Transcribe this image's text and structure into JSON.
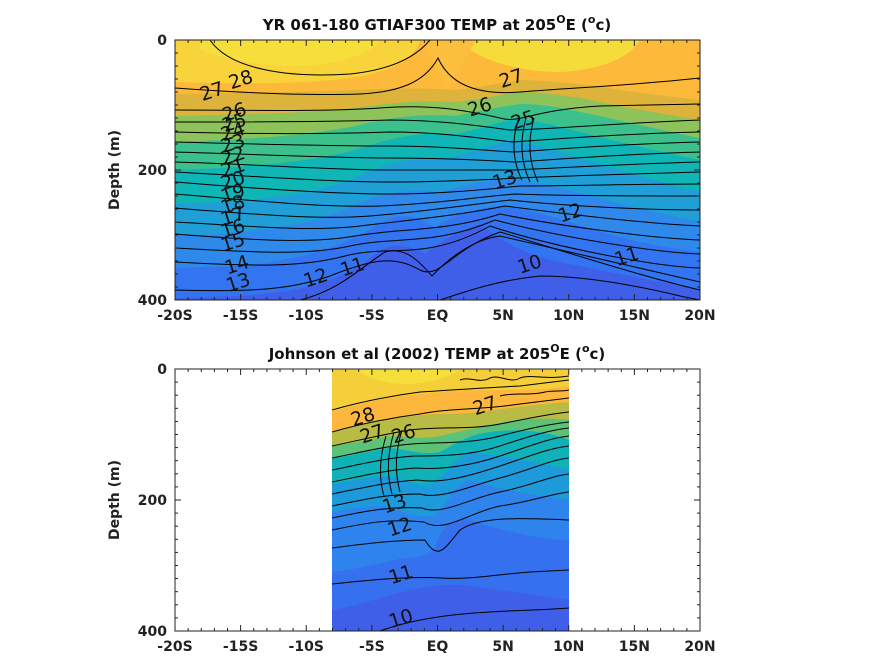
{
  "chart_data": [
    {
      "type": "contour",
      "title": "YR 061-180 GTIAF300 TEMP at 205",
      "title_sup": "O",
      "title_end": "E (",
      "title_sup2": "o",
      "title_tail": "c)",
      "ylabel": "Depth (m)",
      "xlim": [
        -20,
        20
      ],
      "ylim": [
        0,
        400
      ],
      "y_reversed": true,
      "x_ticks": [
        -20,
        -15,
        -10,
        -5,
        0,
        5,
        10,
        15,
        20
      ],
      "x_tick_labels": [
        "-20S",
        "-15S",
        "-10S",
        "-5S",
        "EQ",
        "5N",
        "10N",
        "15N",
        "20N"
      ],
      "y_ticks": [
        0,
        200,
        400
      ],
      "y_tick_labels": [
        "0",
        "200",
        "400"
      ],
      "data_extent_x": [
        -20,
        20
      ],
      "colormap": "parula",
      "contour_levels": [
        10,
        11,
        12,
        13,
        14,
        15,
        16,
        17,
        18,
        19,
        20,
        21,
        22,
        23,
        24,
        25,
        26,
        27,
        28
      ],
      "contour_labels": [
        {
          "text": "28",
          "x": -15,
          "y": 60
        },
        {
          "text": "27",
          "x": -17.2,
          "y": 78
        },
        {
          "text": "26",
          "x": -15.5,
          "y": 110
        },
        {
          "text": "25",
          "x": -15.5,
          "y": 126
        },
        {
          "text": "24",
          "x": -15.6,
          "y": 140
        },
        {
          "text": "23",
          "x": -15.6,
          "y": 158
        },
        {
          "text": "22",
          "x": -15.6,
          "y": 177
        },
        {
          "text": "21",
          "x": -15.6,
          "y": 196
        },
        {
          "text": "20",
          "x": -15.6,
          "y": 215
        },
        {
          "text": "19",
          "x": -15.6,
          "y": 235
        },
        {
          "text": "18",
          "x": -15.6,
          "y": 252
        },
        {
          "text": "17",
          "x": -15.6,
          "y": 270
        },
        {
          "text": "16",
          "x": -15.6,
          "y": 289
        },
        {
          "text": "15",
          "x": -15.6,
          "y": 310
        },
        {
          "text": "14",
          "x": -15.3,
          "y": 345
        },
        {
          "text": "13",
          "x": -15.2,
          "y": 372
        },
        {
          "text": "12",
          "x": -9.3,
          "y": 365
        },
        {
          "text": "11",
          "x": -6.5,
          "y": 348
        },
        {
          "text": "10",
          "x": 7,
          "y": 344
        },
        {
          "text": "27",
          "x": 5.6,
          "y": 58
        },
        {
          "text": "26",
          "x": 3.2,
          "y": 102
        },
        {
          "text": "25",
          "x": 6.5,
          "y": 122
        },
        {
          "text": "13",
          "x": 5.1,
          "y": 214
        },
        {
          "text": "12",
          "x": 10.1,
          "y": 265
        },
        {
          "text": "11",
          "x": 14.4,
          "y": 332
        }
      ]
    },
    {
      "type": "contour",
      "title": "Johnson et al (2002) TEMP at 205",
      "title_sup": "O",
      "title_end": "E (",
      "title_sup2": "o",
      "title_tail": "c)",
      "ylabel": "Depth (m)",
      "xlim": [
        -20,
        20
      ],
      "ylim": [
        0,
        400
      ],
      "y_reversed": true,
      "x_ticks": [
        -20,
        -15,
        -10,
        -5,
        0,
        5,
        10,
        15,
        20
      ],
      "x_tick_labels": [
        "-20S",
        "-15S",
        "-10S",
        "-5S",
        "EQ",
        "5N",
        "10N",
        "15N",
        "20N"
      ],
      "y_ticks": [
        0,
        200,
        400
      ],
      "y_tick_labels": [
        "0",
        "200",
        "400"
      ],
      "data_extent_x": [
        -8,
        10
      ],
      "colormap": "parula",
      "contour_levels": [
        10,
        11,
        12,
        13,
        14,
        15,
        16,
        17,
        18,
        19,
        20,
        21,
        22,
        23,
        24,
        25,
        26,
        27,
        28
      ],
      "contour_labels": [
        {
          "text": "28",
          "x": -5.7,
          "y": 72
        },
        {
          "text": "27",
          "x": -5,
          "y": 98
        },
        {
          "text": "26",
          "x": -2.6,
          "y": 98
        },
        {
          "text": "13",
          "x": -3.3,
          "y": 205
        },
        {
          "text": "12",
          "x": -2.9,
          "y": 240
        },
        {
          "text": "11",
          "x": -2.8,
          "y": 313
        },
        {
          "text": "10",
          "x": -2.8,
          "y": 380
        },
        {
          "text": "27",
          "x": 3.6,
          "y": 55
        }
      ]
    }
  ]
}
